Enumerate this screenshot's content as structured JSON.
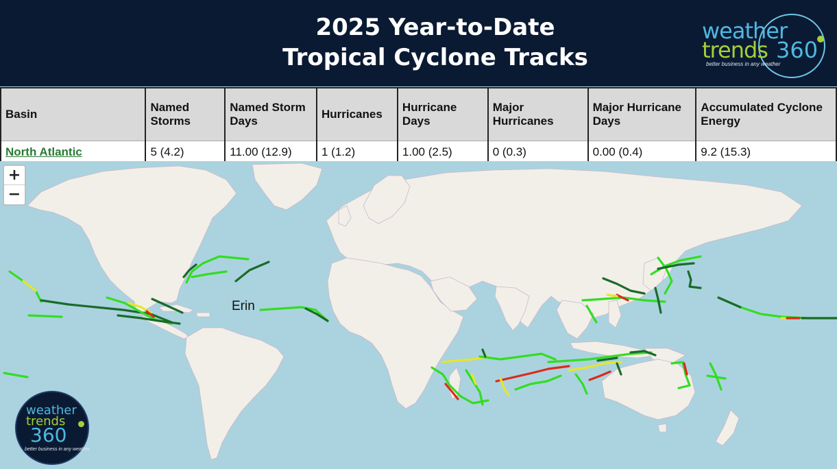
{
  "header": {
    "title_line1": "2025 Year-to-Date",
    "title_line2": "Tropical Cyclone Tracks",
    "logo": {
      "word1": "weather",
      "word2": "trends",
      "word3": "360",
      "tagline": "better business in any weather"
    },
    "colors": {
      "background": "#0b1a33",
      "logo_blue": "#4fb8e0",
      "logo_green": "#a6ce39"
    }
  },
  "table": {
    "headers": [
      "Basin",
      "Named Storms",
      "Named Storm Days",
      "Hurricanes",
      "Hurricane Days",
      "Major Hurricanes",
      "Major Hurricane Days",
      "Accumulated Cyclone Energy"
    ],
    "row": {
      "basin": "North Atlantic",
      "named_storms": "5 (4.2)",
      "named_storm_days": "11.00 (12.9)",
      "hurricanes": "1 (1.2)",
      "hurricane_days": "1.00 (2.5)",
      "major_hurricanes": "0 (0.3)",
      "major_hurricane_days": "0.00 (0.4)",
      "ace": "9.2 (15.3)"
    }
  },
  "map": {
    "zoom_in": "+",
    "zoom_out": "−",
    "storm_label": "Erin",
    "colors": {
      "ocean": "#aad3df",
      "land": "#f2efe9",
      "border": "#c9b8c9",
      "track_weak": "#1a6b2a",
      "track_ts": "#33dd22",
      "track_cat1": "#e6e62a",
      "track_strong": "#dd2a1a"
    },
    "bottom_logo": {
      "word1": "weather",
      "word2": "trends",
      "word3": "360",
      "tagline": "better business in any weather"
    }
  }
}
